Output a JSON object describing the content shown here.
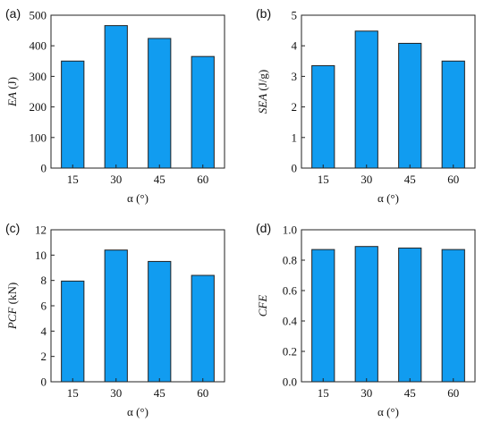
{
  "chart_data": [
    {
      "type": "bar",
      "panel_label": "(a)",
      "categories": [
        "15",
        "30",
        "45",
        "60"
      ],
      "values": [
        350,
        466,
        424,
        365
      ],
      "ylabel_var": "EA",
      "ylabel_unit": " (J)",
      "xlabel": "α (°)",
      "ylim": [
        0,
        500
      ],
      "yticks": [
        0,
        100,
        200,
        300,
        400,
        500
      ],
      "ytick_labels": [
        "0",
        "100",
        "200",
        "300",
        "400",
        "500"
      ],
      "bar_color": "#119cf0"
    },
    {
      "type": "bar",
      "panel_label": "(b)",
      "categories": [
        "15",
        "30",
        "45",
        "60"
      ],
      "values": [
        3.35,
        4.48,
        4.08,
        3.5
      ],
      "ylabel_var": "SEA",
      "ylabel_unit": " (J/g)",
      "xlabel": "α (°)",
      "ylim": [
        0,
        5
      ],
      "yticks": [
        0,
        1,
        2,
        3,
        4,
        5
      ],
      "ytick_labels": [
        "0",
        "1",
        "2",
        "3",
        "4",
        "5"
      ],
      "bar_color": "#119cf0"
    },
    {
      "type": "bar",
      "panel_label": "(c)",
      "categories": [
        "15",
        "30",
        "45",
        "60"
      ],
      "values": [
        7.95,
        10.4,
        9.5,
        8.4
      ],
      "ylabel_var": "PCF",
      "ylabel_unit": " (kN)",
      "xlabel": "α (°)",
      "ylim": [
        0,
        12
      ],
      "yticks": [
        0,
        2,
        4,
        6,
        8,
        10,
        12
      ],
      "ytick_labels": [
        "0",
        "2",
        "4",
        "6",
        "8",
        "10",
        "12"
      ],
      "bar_color": "#119cf0"
    },
    {
      "type": "bar",
      "panel_label": "(d)",
      "categories": [
        "15",
        "30",
        "45",
        "60"
      ],
      "values": [
        0.87,
        0.89,
        0.88,
        0.87
      ],
      "ylabel_var": "CFE",
      "ylabel_unit": "",
      "xlabel": "α (°)",
      "ylim": [
        0,
        1
      ],
      "yticks": [
        0,
        0.2,
        0.4,
        0.6,
        0.8,
        1.0
      ],
      "ytick_labels": [
        "0.0",
        "0.2",
        "0.4",
        "0.6",
        "0.8",
        "1.0"
      ],
      "bar_color": "#119cf0"
    }
  ]
}
